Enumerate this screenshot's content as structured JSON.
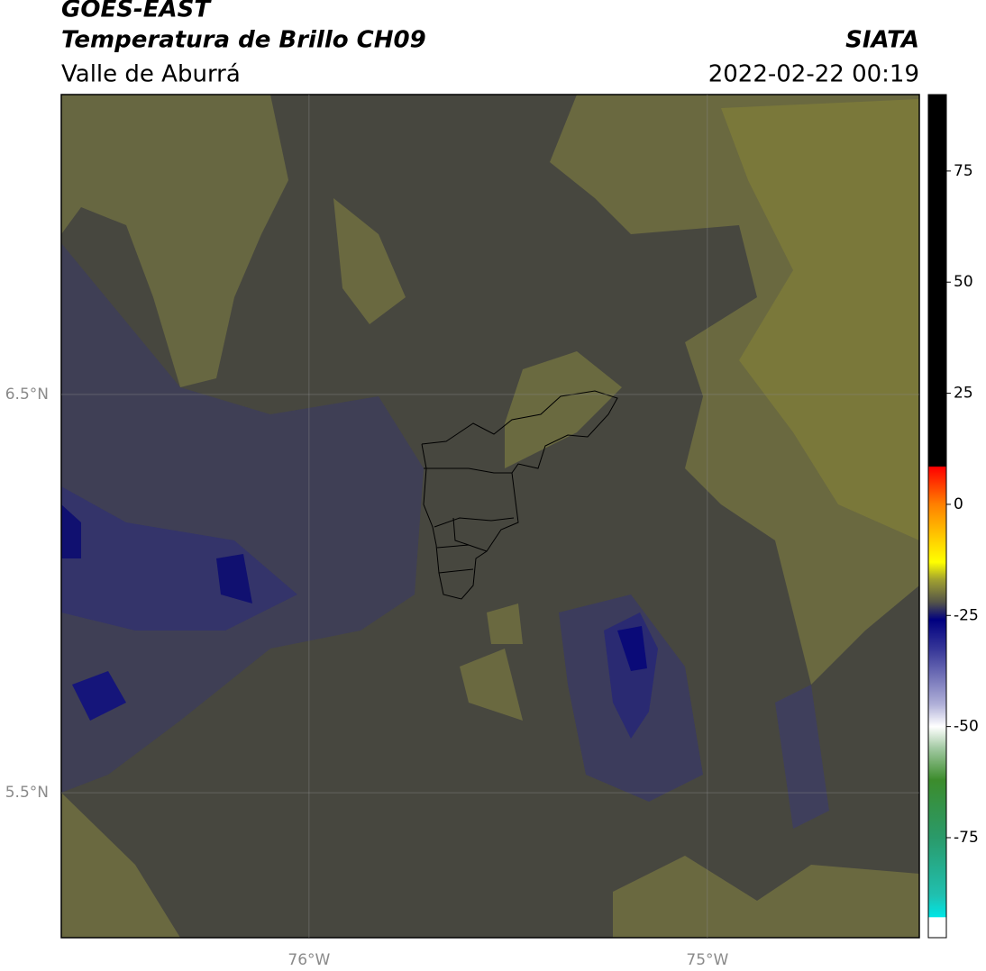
{
  "header": {
    "title": "GOES-EAST",
    "subtitle": "Temperatura de Brillo CH09",
    "region": "Valle de Aburrá",
    "agency": "SIATA",
    "datetime": "2022-02-22 00:19"
  },
  "map": {
    "lon_range": [
      -76.622,
      -74.468
    ],
    "lat_range": [
      5.136,
      7.253
    ],
    "lat_labels": [
      {
        "value": 6.5,
        "label": "6.5°N"
      },
      {
        "value": 5.5,
        "label": "5.5°N"
      }
    ],
    "lon_labels": [
      {
        "value": -76,
        "label": "76°W"
      },
      {
        "value": -75,
        "label": "75°W"
      }
    ]
  },
  "colorbar": {
    "range": [
      -97.5,
      92.2
    ],
    "ticks": [
      75,
      50,
      25,
      0,
      -25,
      -50,
      -75
    ],
    "colormap": [
      {
        "value": 92.2,
        "color": "#000000"
      },
      {
        "value": 8.6,
        "color": "#000000"
      },
      {
        "value": 8.4,
        "color": "#ff0000"
      },
      {
        "value": 0,
        "color": "#ff8000"
      },
      {
        "value": -8,
        "color": "#ffd000"
      },
      {
        "value": -13,
        "color": "#ffff00"
      },
      {
        "value": -17,
        "color": "#a0a030"
      },
      {
        "value": -22,
        "color": "#555548"
      },
      {
        "value": -26,
        "color": "#000080"
      },
      {
        "value": -33,
        "color": "#3a3a9a"
      },
      {
        "value": -45,
        "color": "#b0b0d8"
      },
      {
        "value": -50,
        "color": "#ffffff"
      },
      {
        "value": -55,
        "color": "#a0c8a0"
      },
      {
        "value": -62,
        "color": "#3c8c2c"
      },
      {
        "value": -75,
        "color": "#2a9a6a"
      },
      {
        "value": -88,
        "color": "#20c0b0"
      },
      {
        "value": -92.8,
        "color": "#00e5e5"
      },
      {
        "value": -93,
        "color": "#ffffff"
      },
      {
        "value": -97.5,
        "color": "#ffffff"
      }
    ]
  }
}
